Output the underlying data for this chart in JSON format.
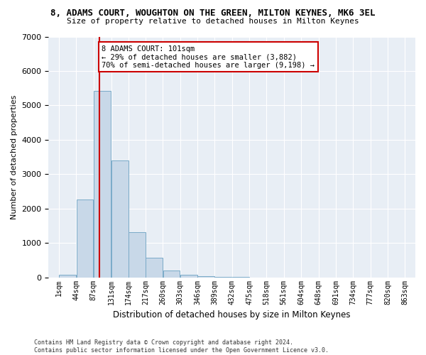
{
  "title": "8, ADAMS COURT, WOUGHTON ON THE GREEN, MILTON KEYNES, MK6 3EL",
  "subtitle": "Size of property relative to detached houses in Milton Keynes",
  "xlabel": "Distribution of detached houses by size in Milton Keynes",
  "ylabel": "Number of detached properties",
  "bar_color": "#c8d8e8",
  "bar_edge_color": "#7aaac8",
  "bg_color": "#e8eef5",
  "annotation_text": "8 ADAMS COURT: 101sqm\n← 29% of detached houses are smaller (3,882)\n70% of semi-detached houses are larger (9,198) →",
  "property_line_x": 101,
  "property_line_color": "#cc0000",
  "annotation_box_edge": "#cc0000",
  "footnote": "Contains HM Land Registry data © Crown copyright and database right 2024.\nContains public sector information licensed under the Open Government Licence v3.0.",
  "bin_edges": [
    1,
    44,
    87,
    131,
    174,
    217,
    260,
    303,
    346,
    389,
    432,
    475,
    518,
    561,
    604,
    648,
    691,
    734,
    777,
    820,
    863
  ],
  "bin_counts": [
    75,
    2265,
    5420,
    3390,
    1310,
    575,
    195,
    80,
    40,
    10,
    5,
    2,
    1,
    0,
    0,
    0,
    0,
    0,
    0,
    0
  ],
  "ylim": [
    0,
    7000
  ],
  "yticks": [
    0,
    1000,
    2000,
    3000,
    4000,
    5000,
    6000,
    7000
  ]
}
